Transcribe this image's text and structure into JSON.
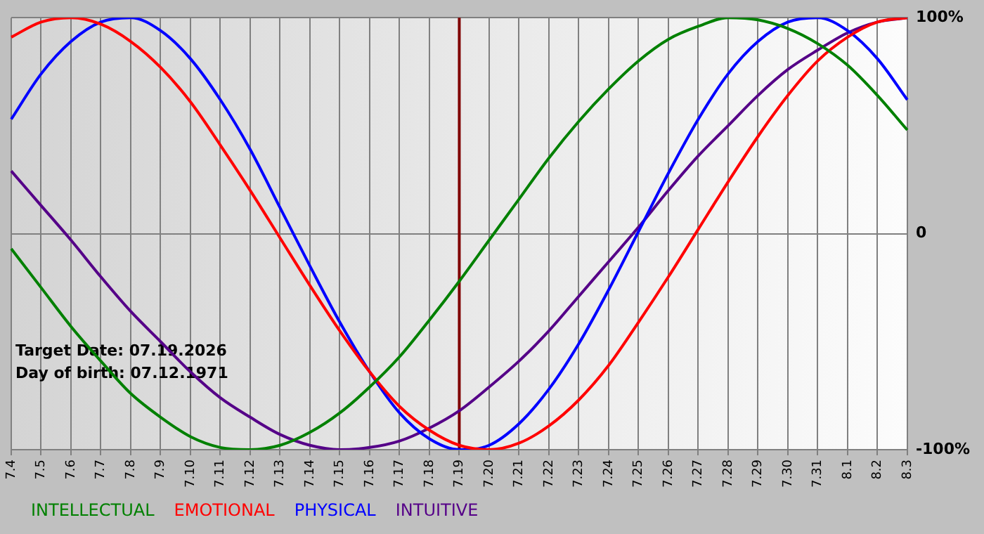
{
  "chart_data": {
    "type": "line",
    "categories": [
      "7.4",
      "7.5",
      "7.6",
      "7.7",
      "7.8",
      "7.9",
      "7.10",
      "7.11",
      "7.12",
      "7.13",
      "7.14",
      "7.15",
      "7.16",
      "7.17",
      "7.18",
      "7.19",
      "7.20",
      "7.21",
      "7.22",
      "7.23",
      "7.24",
      "7.25",
      "7.26",
      "7.27",
      "7.28",
      "7.29",
      "7.30",
      "7.31",
      "8.1",
      "8.2",
      "8.3"
    ],
    "series": [
      {
        "name": "INTELLECTUAL",
        "color": "#008000",
        "values": [
          -7,
          -25,
          -43,
          -59,
          -74,
          -85,
          -94,
          -99,
          -100,
          -98,
          -92,
          -83,
          -71,
          -57,
          -40,
          -22,
          -3,
          16,
          35,
          52,
          67,
          80,
          90,
          96,
          100,
          99,
          95,
          88,
          78,
          64,
          48
        ]
      },
      {
        "name": "EMOTIONAL",
        "color": "#ff0000",
        "values": [
          91,
          98,
          100,
          97,
          89,
          77,
          61,
          41,
          20,
          -2,
          -24,
          -45,
          -64,
          -80,
          -91,
          -98,
          -100,
          -97,
          -89,
          -77,
          -61,
          -41,
          -20,
          2,
          24,
          45,
          64,
          80,
          91,
          98,
          100
        ]
      },
      {
        "name": "PHYSICAL",
        "color": "#0000ff",
        "values": [
          53,
          74,
          89,
          98,
          100,
          94,
          81,
          62,
          39,
          12,
          -15,
          -41,
          -64,
          -83,
          -95,
          -100,
          -98,
          -88,
          -72,
          -51,
          -26,
          1,
          28,
          53,
          74,
          89,
          98,
          100,
          94,
          81,
          62
        ]
      },
      {
        "name": "INTUITIVE",
        "color": "#550088",
        "values": [
          29,
          13,
          -3,
          -20,
          -36,
          -50,
          -64,
          -76,
          -85,
          -93,
          -98,
          -100,
          -99,
          -96,
          -90,
          -82,
          -71,
          -59,
          -45,
          -29,
          -13,
          3,
          20,
          36,
          50,
          64,
          76,
          85,
          93,
          98,
          100
        ]
      }
    ],
    "ylim": [
      -100,
      100
    ],
    "yticks": [
      {
        "value": -100,
        "label": "-100%"
      },
      {
        "value": 0,
        "label": "0"
      },
      {
        "value": 100,
        "label": "100%"
      }
    ],
    "ref_lines": [
      {
        "axis": "x",
        "value": "7.19",
        "color": "#800000"
      }
    ],
    "annotations": [
      "Target Date: 07.19.2026",
      "Day of birth: 07.12.1971"
    ],
    "grid": true,
    "legend": "bottom left",
    "marker": "none",
    "line_style": "solid"
  }
}
